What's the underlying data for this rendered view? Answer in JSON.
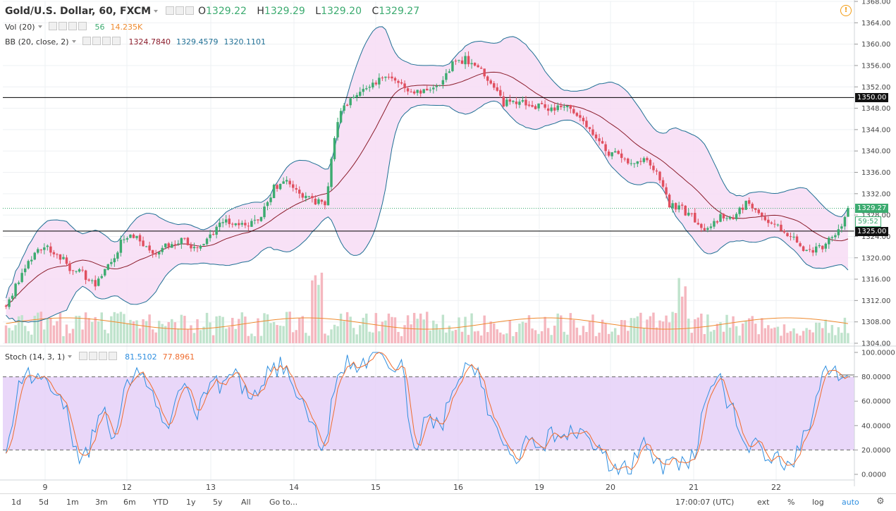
{
  "header": {
    "symbol": "Gold/U.S. Dollar, 60, FXCM",
    "open_label": "O",
    "open": "1329.22",
    "high_label": "H",
    "high": "1329.29",
    "low_label": "L",
    "low": "1329.20",
    "close_label": "C",
    "close": "1329.27"
  },
  "vol": {
    "label": "Vol (20)",
    "value": "56",
    "ma": "14.235K"
  },
  "bb": {
    "label": "BB (20, close, 2)",
    "basis": "1324.7840",
    "upper": "1329.4579",
    "lower": "1320.1101"
  },
  "stoch": {
    "label": "Stoch (14, 3, 1)",
    "k": "81.5102",
    "d": "77.8961",
    "ticks": [
      "100.0000",
      "80.0000",
      "60.0000",
      "40.0000",
      "20.0000",
      "0.0000"
    ]
  },
  "price_axis": {
    "ticks": [
      "1368.00",
      "1364.00",
      "1360.00",
      "1356.00",
      "1352.00",
      "1348.00",
      "1344.00",
      "1340.00",
      "1336.00",
      "1332.00",
      "1328.00",
      "1324.00",
      "1320.00",
      "1316.00",
      "1312.00",
      "1308.00",
      "1304.00"
    ]
  },
  "tags": {
    "level_high": "1350.00",
    "current": "1329.27",
    "countdown": "59:52",
    "level_low": "1325.00"
  },
  "time_axis": {
    "labels": [
      "9",
      "12",
      "13",
      "14",
      "15",
      "16",
      "19",
      "20",
      "21",
      "22"
    ]
  },
  "toolbar": {
    "ranges": [
      "1d",
      "5d",
      "1m",
      "3m",
      "6m",
      "YTD",
      "1y",
      "5y",
      "All"
    ],
    "goto": "Go to...",
    "clock": "17:00:07 (UTC)",
    "ext": "ext",
    "pct": "%",
    "log": "log",
    "auto": "auto"
  },
  "colors": {
    "up": "#3cab70",
    "down": "#e04f5f",
    "bb_band": "#1f6f94",
    "bb_basis": "#8b1c2b",
    "bb_fill": "#f7dcf5",
    "stoch_k": "#2f8fe0",
    "stoch_d": "#ef6c2e",
    "stoch_band": "#e4cdf7"
  },
  "chart_data": {
    "type": "candlestick",
    "price_range": [
      1304,
      1368
    ],
    "date_labels": [
      "9",
      "12",
      "13",
      "14",
      "15",
      "16",
      "19",
      "20",
      "21",
      "22"
    ],
    "price_anchors": [
      [
        0,
        1311
      ],
      [
        4,
        1316
      ],
      [
        8,
        1320
      ],
      [
        12,
        1322
      ],
      [
        16,
        1321
      ],
      [
        20,
        1318
      ],
      [
        24,
        1317
      ],
      [
        28,
        1315
      ],
      [
        32,
        1318
      ],
      [
        36,
        1323
      ],
      [
        40,
        1324
      ],
      [
        44,
        1322
      ],
      [
        48,
        1321
      ],
      [
        52,
        1323
      ],
      [
        56,
        1323
      ],
      [
        60,
        1322
      ],
      [
        64,
        1324
      ],
      [
        68,
        1327
      ],
      [
        72,
        1327
      ],
      [
        76,
        1326
      ],
      [
        80,
        1328
      ],
      [
        84,
        1333
      ],
      [
        88,
        1335
      ],
      [
        92,
        1332
      ],
      [
        96,
        1331
      ],
      [
        100,
        1330
      ],
      [
        104,
        1346
      ],
      [
        108,
        1350
      ],
      [
        112,
        1352
      ],
      [
        116,
        1353
      ],
      [
        120,
        1354
      ],
      [
        124,
        1352
      ],
      [
        128,
        1351
      ],
      [
        132,
        1352
      ],
      [
        136,
        1353
      ],
      [
        140,
        1356
      ],
      [
        144,
        1357
      ],
      [
        148,
        1356
      ],
      [
        152,
        1353
      ],
      [
        156,
        1349
      ],
      [
        160,
        1349
      ],
      [
        164,
        1349
      ],
      [
        168,
        1348
      ],
      [
        172,
        1348
      ],
      [
        176,
        1348
      ],
      [
        180,
        1347
      ],
      [
        184,
        1343
      ],
      [
        188,
        1340
      ],
      [
        192,
        1339
      ],
      [
        196,
        1337
      ],
      [
        200,
        1339
      ],
      [
        204,
        1336
      ],
      [
        208,
        1330
      ],
      [
        212,
        1329
      ],
      [
        216,
        1327
      ],
      [
        220,
        1325
      ],
      [
        224,
        1328
      ],
      [
        228,
        1328
      ],
      [
        232,
        1330
      ],
      [
        236,
        1329
      ],
      [
        240,
        1326
      ],
      [
        244,
        1325
      ],
      [
        248,
        1323
      ],
      [
        252,
        1321
      ],
      [
        256,
        1322
      ],
      [
        260,
        1324
      ],
      [
        264,
        1329.27
      ]
    ],
    "stoch_anchors": [
      [
        0,
        20
      ],
      [
        4,
        75
      ],
      [
        8,
        82
      ],
      [
        12,
        85
      ],
      [
        14,
        70
      ],
      [
        18,
        60
      ],
      [
        22,
        15
      ],
      [
        26,
        20
      ],
      [
        30,
        55
      ],
      [
        34,
        30
      ],
      [
        38,
        80
      ],
      [
        42,
        80
      ],
      [
        46,
        70
      ],
      [
        50,
        35
      ],
      [
        54,
        75
      ],
      [
        58,
        70
      ],
      [
        60,
        50
      ],
      [
        64,
        75
      ],
      [
        68,
        70
      ],
      [
        72,
        80
      ],
      [
        76,
        65
      ],
      [
        80,
        75
      ],
      [
        84,
        90
      ],
      [
        88,
        85
      ],
      [
        92,
        60
      ],
      [
        96,
        40
      ],
      [
        100,
        20
      ],
      [
        104,
        90
      ],
      [
        108,
        90
      ],
      [
        112,
        95
      ],
      [
        116,
        95
      ],
      [
        120,
        90
      ],
      [
        124,
        90
      ],
      [
        128,
        20
      ],
      [
        132,
        50
      ],
      [
        136,
        40
      ],
      [
        140,
        60
      ],
      [
        144,
        85
      ],
      [
        148,
        80
      ],
      [
        152,
        50
      ],
      [
        156,
        30
      ],
      [
        160,
        15
      ],
      [
        164,
        35
      ],
      [
        168,
        20
      ],
      [
        172,
        35
      ],
      [
        176,
        35
      ],
      [
        180,
        30
      ],
      [
        184,
        25
      ],
      [
        188,
        10
      ],
      [
        192,
        8
      ],
      [
        196,
        8
      ],
      [
        200,
        25
      ],
      [
        204,
        8
      ],
      [
        208,
        5
      ],
      [
        212,
        10
      ],
      [
        216,
        15
      ],
      [
        220,
        70
      ],
      [
        224,
        75
      ],
      [
        228,
        50
      ],
      [
        232,
        20
      ],
      [
        236,
        25
      ],
      [
        240,
        15
      ],
      [
        244,
        10
      ],
      [
        248,
        15
      ],
      [
        252,
        40
      ],
      [
        256,
        85
      ],
      [
        260,
        82
      ],
      [
        264,
        81.51
      ]
    ],
    "horizontal_levels": [
      1350.0,
      1325.0
    ],
    "indicators": [
      "Vol (20)",
      "BB (20, close, 2)",
      "Stoch (14, 3, 1)"
    ]
  }
}
